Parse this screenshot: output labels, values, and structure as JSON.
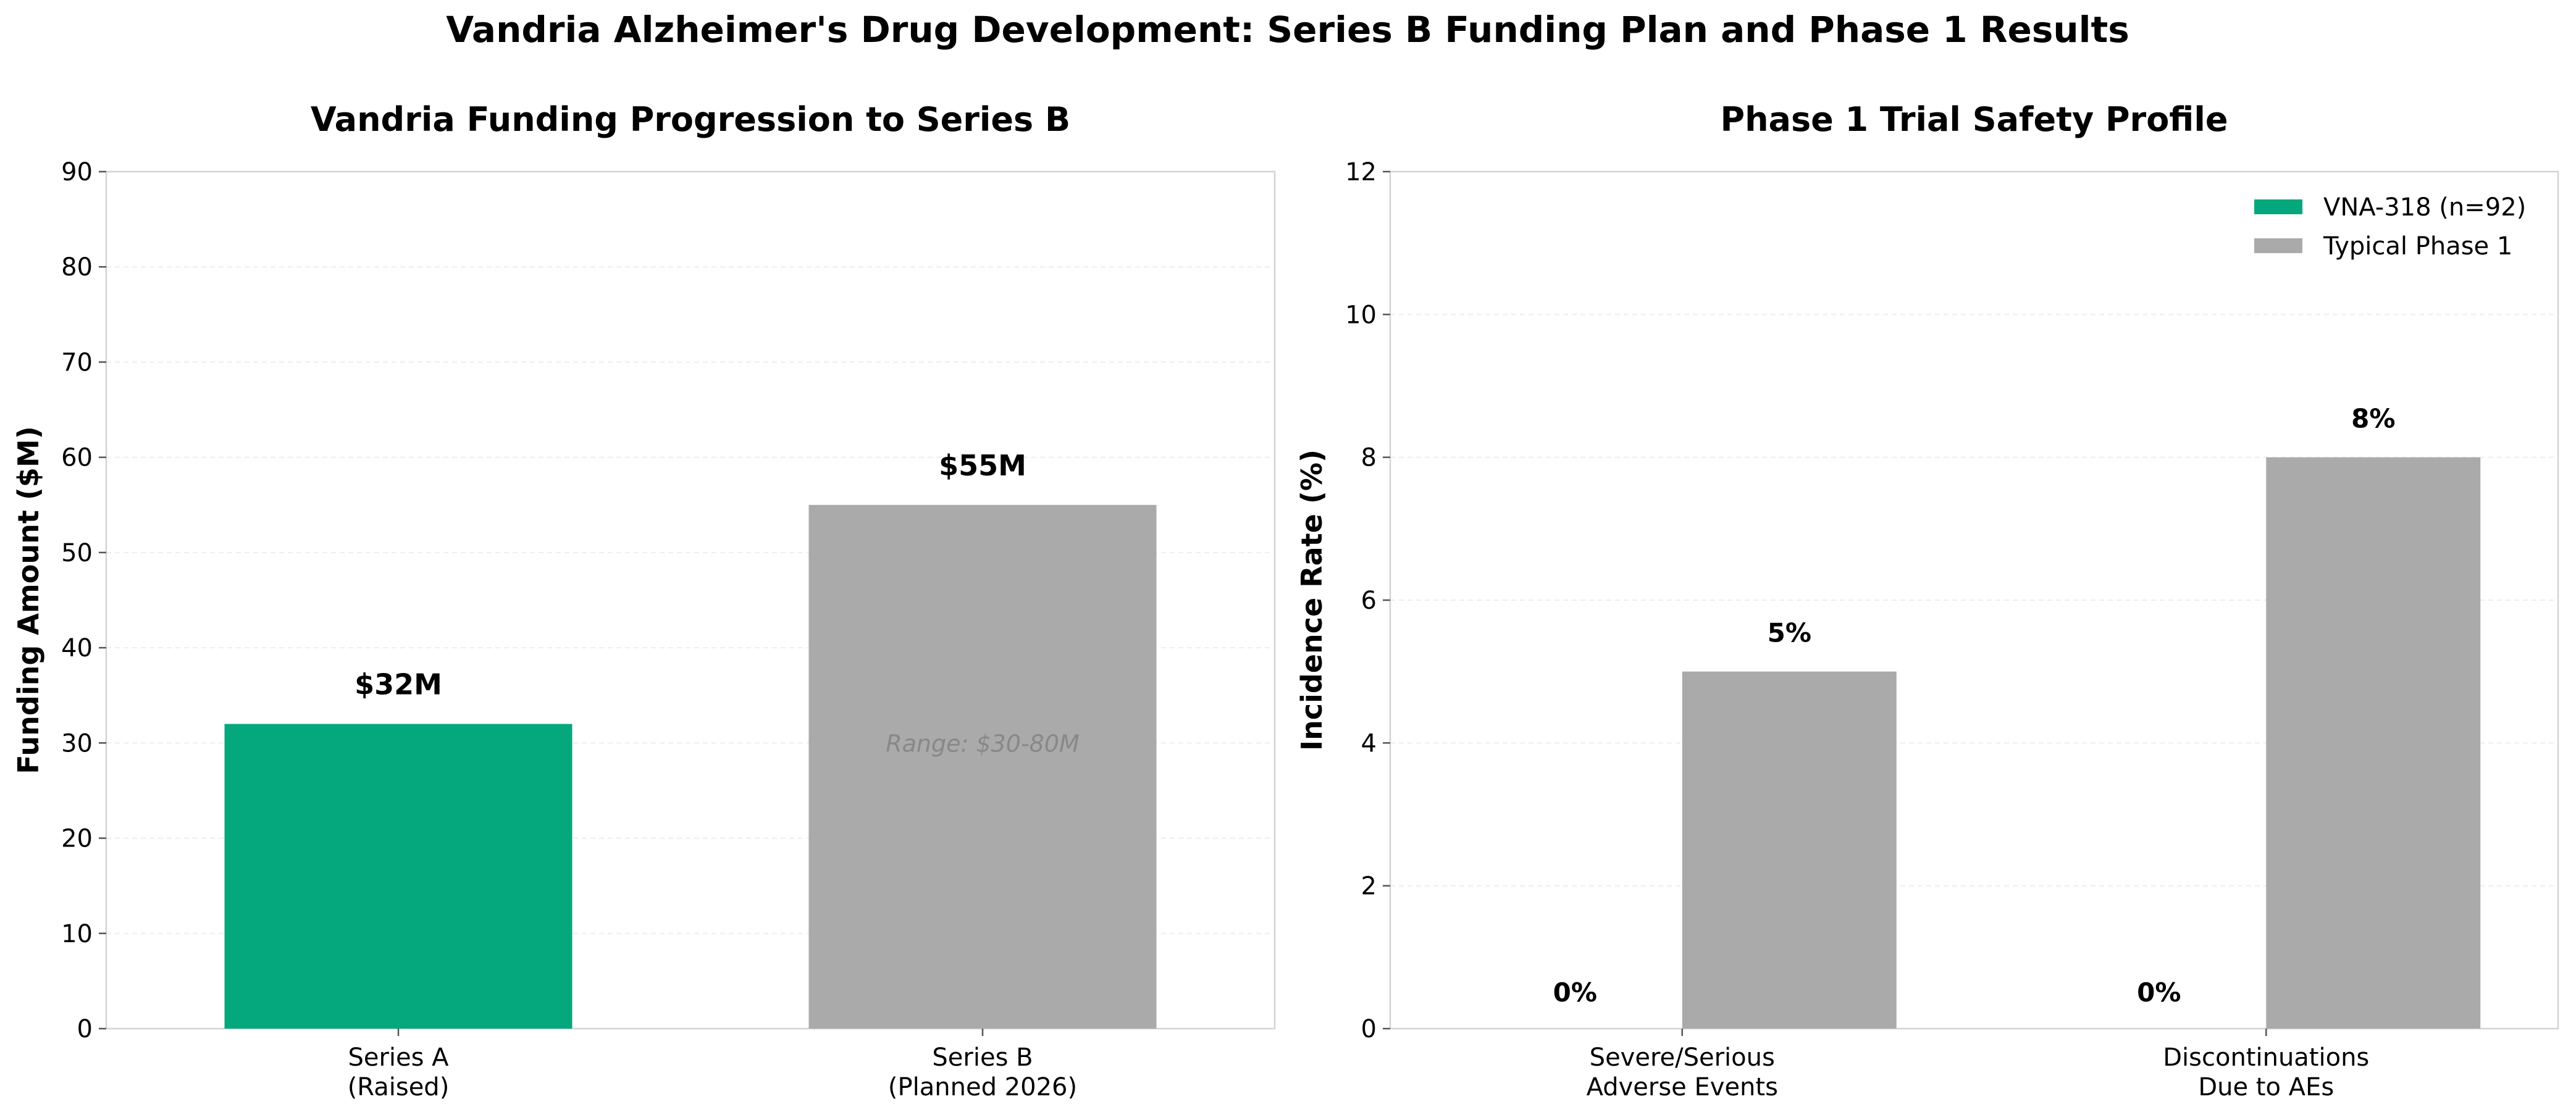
{
  "suptitle": "Vandria Alzheimer's Drug Development: Series B Funding Plan and Phase 1 Results",
  "colors": {
    "accent": "#05A87C",
    "neutral": "#AAAAAA",
    "axis": "#D3D3D3",
    "grid": "#EEEEEE",
    "text": "#000000",
    "muted": "#888888"
  },
  "chart_data": [
    {
      "type": "bar",
      "title": "Vandria Funding Progression to Series B",
      "xlabel": "",
      "ylabel": "Funding Amount ($M)",
      "ylim": [
        0,
        90
      ],
      "yticks": [
        0,
        10,
        20,
        30,
        40,
        50,
        60,
        70,
        80,
        90
      ],
      "grid": true,
      "categories": [
        [
          "Series A",
          "(Raised)"
        ],
        [
          "Series B",
          "(Planned 2026)"
        ]
      ],
      "values": [
        32,
        55
      ],
      "bar_colors": [
        "accent",
        "neutral"
      ],
      "data_labels": [
        "$32M",
        "$55M"
      ],
      "annotation": {
        "text": "Range: $30-80M",
        "category_index": 1,
        "y": 30
      }
    },
    {
      "type": "bar",
      "title": "Phase 1 Trial Safety Profile",
      "xlabel": "",
      "ylabel": "Incidence Rate (%)",
      "ylim": [
        0,
        12
      ],
      "yticks": [
        0,
        2,
        4,
        6,
        8,
        10,
        12
      ],
      "grid": true,
      "legend_position": "top-right",
      "categories": [
        [
          "Severe/Serious",
          "Adverse Events"
        ],
        [
          "Discontinuations",
          "Due to AEs"
        ]
      ],
      "series": [
        {
          "name": "VNA-318 (n=92)",
          "color": "accent",
          "values": [
            0,
            0
          ],
          "data_labels": [
            "0%",
            "0%"
          ]
        },
        {
          "name": "Typical Phase 1",
          "color": "neutral",
          "values": [
            5,
            8
          ],
          "data_labels": [
            "5%",
            "8%"
          ]
        }
      ]
    }
  ]
}
